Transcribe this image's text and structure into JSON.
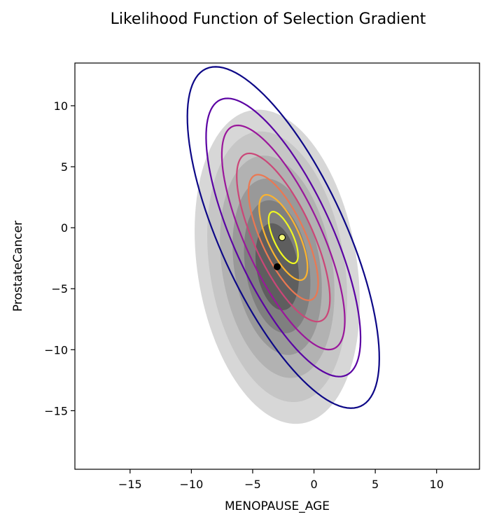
{
  "chart_data": {
    "type": "contour",
    "title": "Likelihood Function of Selection Gradient",
    "xlabel": "MENOPAUSE_AGE",
    "ylabel": "ProstateCancer",
    "xlim": [
      -19.5,
      13.5
    ],
    "ylim": [
      -19.8,
      13.5
    ],
    "xticks": [
      -15,
      -10,
      -5,
      0,
      5,
      10
    ],
    "yticks": [
      -15,
      -10,
      -5,
      0,
      5,
      10
    ],
    "xtick_labels": [
      "−15",
      "−10",
      "−5",
      "0",
      "5",
      "10"
    ],
    "ytick_labels": [
      "−15",
      "−10",
      "−5",
      "0",
      "5",
      "10"
    ],
    "grid": false,
    "filled_contours": {
      "center": [
        -3.0,
        -3.2
      ],
      "angle_deg": -81,
      "levels": [
        {
          "a": 13.0,
          "b": 6.5,
          "color": "#d7d7d7"
        },
        {
          "a": 11.2,
          "b": 5.5,
          "color": "#c6c6c6"
        },
        {
          "a": 9.2,
          "b": 4.5,
          "color": "#b2b2b2"
        },
        {
          "a": 7.3,
          "b": 3.5,
          "color": "#999999"
        },
        {
          "a": 5.5,
          "b": 2.6,
          "color": "#7f7f7f"
        },
        {
          "a": 3.6,
          "b": 1.7,
          "color": "#5e5e5e"
        }
      ]
    },
    "line_contours": {
      "center": [
        -2.5,
        -0.8
      ],
      "angle_deg": -65.5,
      "levels": [
        {
          "a": 15.2,
          "b": 5.1,
          "color": "#0d0887"
        },
        {
          "a": 12.4,
          "b": 4.0,
          "color": "#5b02a3"
        },
        {
          "a": 10.0,
          "b": 3.1,
          "color": "#9a179b"
        },
        {
          "a": 7.5,
          "b": 2.4,
          "color": "#cb4678"
        },
        {
          "a": 5.6,
          "b": 1.8,
          "color": "#eb7852"
        },
        {
          "a": 3.8,
          "b": 1.3,
          "color": "#fbb32f"
        },
        {
          "a": 2.3,
          "b": 0.8,
          "color": "#eff821"
        }
      ]
    },
    "points": [
      {
        "x": -2.6,
        "y": -0.8,
        "color": "#f3f87a"
      },
      {
        "x": -3.0,
        "y": -3.2,
        "color": "#000000"
      }
    ]
  }
}
